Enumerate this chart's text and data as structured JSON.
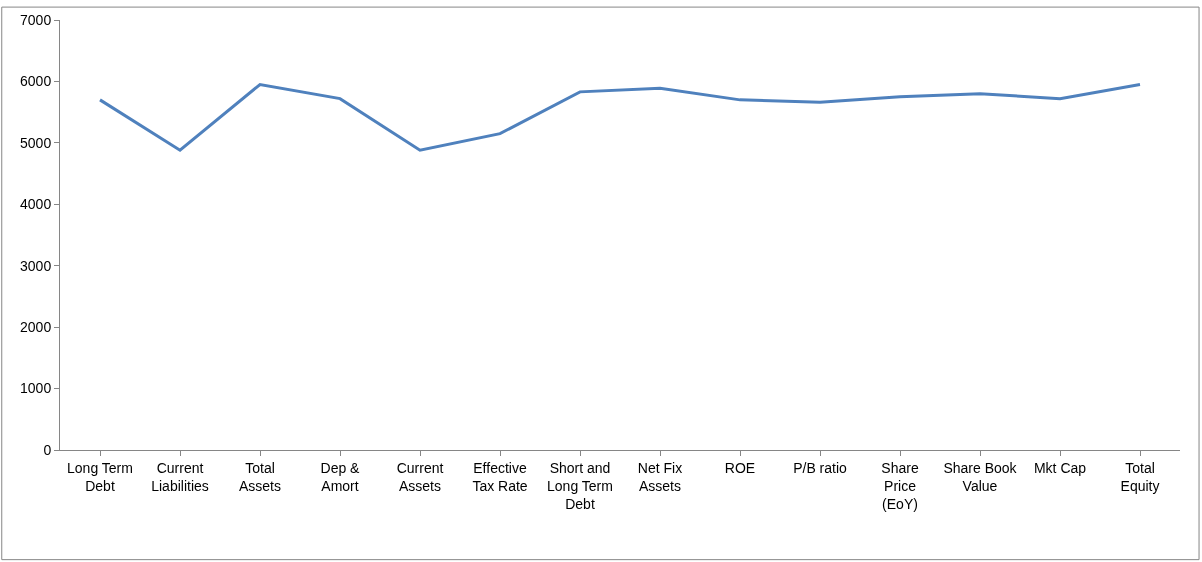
{
  "chart_data": {
    "type": "line",
    "categories": [
      "Long Term Debt",
      "Current Liabilities",
      "Total Assets",
      "Dep & Amort",
      "Current Assets",
      "Effective Tax Rate",
      "Short and Long Term Debt",
      "Net Fix Assets",
      "ROE",
      "P/B ratio",
      "Share Price (EoY)",
      "Share Book Value",
      "Mkt Cap",
      "Total Equity"
    ],
    "series": [
      {
        "color": "#4f81bd",
        "values": [
          5700,
          4880,
          5950,
          5720,
          4880,
          5150,
          5830,
          5890,
          5700,
          5660,
          5750,
          5800,
          5720,
          5950
        ]
      }
    ],
    "ylim": [
      0,
      7000
    ],
    "yticks": [
      0,
      1000,
      2000,
      3000,
      4000,
      5000,
      6000,
      7000
    ],
    "marker": "none",
    "line_style": "solid"
  }
}
